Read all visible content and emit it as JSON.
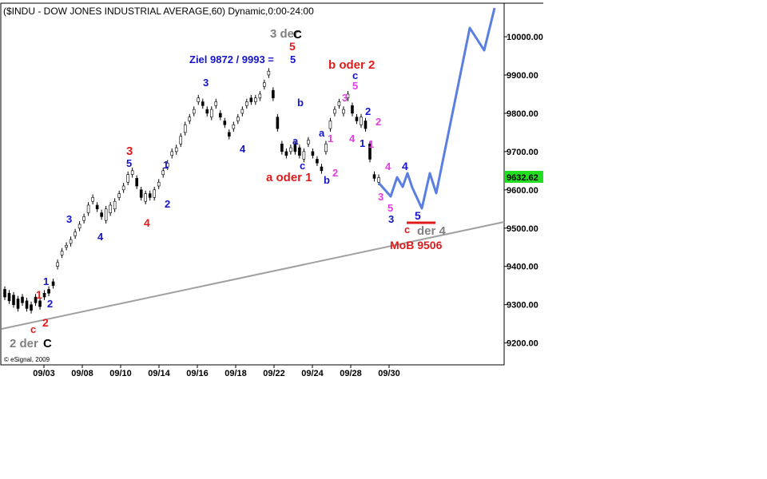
{
  "chart_data": {
    "type": "line",
    "title": "($INDU - DOW JONES INDUSTRIAL AVERAGE,60) Dynamic,0:00-24:00",
    "copyright": "© eSignal, 2009",
    "x_ticks": [
      "09/03",
      "09/08",
      "09/10",
      "09/14",
      "09/16",
      "09/18",
      "09/22",
      "09/24",
      "09/28",
      "09/30"
    ],
    "y_ticks": [
      "10000.00",
      "9900.00",
      "9800.00",
      "9700.00",
      "9600.00",
      "9500.00",
      "9400.00",
      "9300.00",
      "9200.00"
    ],
    "ylim": [
      9155,
      10080
    ],
    "last_price": "9632.62",
    "last_price_value": 9632.62,
    "colors": {
      "price": "#000000",
      "bull": "#000000",
      "bear": "#000000",
      "forecast": "#5b7fe0",
      "trendline": "#a0a0a0",
      "last_price_bg": "#22dd22",
      "red": "#e01b1b",
      "blue": "#1414c8",
      "magenta": "#e040e0",
      "gray": "#808080",
      "black": "#000000"
    },
    "price_path": [
      [
        9340,
        9320
      ],
      [
        9330,
        9310
      ],
      [
        9325,
        9300
      ],
      [
        9315,
        9290
      ],
      [
        9320,
        9305
      ],
      [
        9310,
        9290
      ],
      [
        9300,
        9285
      ],
      [
        9320,
        9305
      ],
      [
        9310,
        9295
      ],
      [
        9330,
        9320
      ],
      [
        9340,
        9330
      ],
      [
        9360,
        9350
      ],
      [
        9400,
        9410
      ],
      [
        9430,
        9440
      ],
      [
        9450,
        9455
      ],
      [
        9460,
        9470
      ],
      [
        9480,
        9490
      ],
      [
        9500,
        9510
      ],
      [
        9520,
        9530
      ],
      [
        9540,
        9560
      ],
      [
        9570,
        9580
      ],
      [
        9560,
        9550
      ],
      [
        9540,
        9530
      ],
      [
        9520,
        9550
      ],
      [
        9540,
        9560
      ],
      [
        9550,
        9570
      ],
      [
        9580,
        9590
      ],
      [
        9600,
        9610
      ],
      [
        9620,
        9640
      ],
      [
        9640,
        9650
      ],
      [
        9630,
        9610
      ],
      [
        9600,
        9580
      ],
      [
        9570,
        9590
      ],
      [
        9590,
        9580
      ],
      [
        9580,
        9600
      ],
      [
        9610,
        9620
      ],
      [
        9640,
        9650
      ],
      [
        9660,
        9670
      ],
      [
        9690,
        9700
      ],
      [
        9700,
        9710
      ],
      [
        9720,
        9740
      ],
      [
        9750,
        9770
      ],
      [
        9780,
        9790
      ],
      [
        9800,
        9810
      ],
      [
        9830,
        9840
      ],
      [
        9830,
        9820
      ],
      [
        9810,
        9800
      ],
      [
        9790,
        9810
      ],
      [
        9820,
        9830
      ],
      [
        9800,
        9790
      ],
      [
        9780,
        9770
      ],
      [
        9750,
        9740
      ],
      [
        9760,
        9770
      ],
      [
        9780,
        9790
      ],
      [
        9800,
        9810
      ],
      [
        9820,
        9830
      ],
      [
        9840,
        9830
      ],
      [
        9830,
        9840
      ],
      [
        9840,
        9850
      ],
      [
        9870,
        9880
      ],
      [
        9900,
        9910
      ],
      [
        9860,
        9840
      ],
      [
        9790,
        9760
      ],
      [
        9720,
        9700
      ],
      [
        9700,
        9690
      ],
      [
        9700,
        9710
      ],
      [
        9720,
        9700
      ],
      [
        9710,
        9690
      ],
      [
        9680,
        9700
      ],
      [
        9720,
        9730
      ],
      [
        9700,
        9690
      ],
      [
        9680,
        9670
      ],
      [
        9660,
        9650
      ],
      [
        9700,
        9720
      ],
      [
        9760,
        9780
      ],
      [
        9800,
        9810
      ],
      [
        9820,
        9830
      ],
      [
        9800,
        9810
      ],
      [
        9840,
        9850
      ],
      [
        9820,
        9800
      ],
      [
        9790,
        9780
      ],
      [
        9770,
        9790
      ],
      [
        9780,
        9760
      ],
      [
        9720,
        9680
      ],
      [
        9640,
        9630
      ],
      [
        9620,
        9632
      ]
    ],
    "forecast_path": [
      [
        9632,
        9590
      ],
      [
        9650,
        9590
      ],
      [
        9640,
        9600
      ],
      [
        9640,
        9560
      ],
      [
        9640,
        9590
      ],
      [
        9670,
        9510
      ],
      [
        9900,
        9950
      ],
      [
        10010,
        10090
      ],
      [
        10070,
        10030
      ]
    ],
    "trendline": {
      "x0": 0,
      "y0": 9237,
      "x1": 1,
      "y1": 9517
    },
    "annotations": [
      {
        "text": "3 der ",
        "color": "gray",
        "size": 15
      },
      {
        "text": "C",
        "color": "black",
        "size": 15
      },
      {
        "text": "5",
        "color": "red",
        "size": 14
      },
      {
        "text": "Ziel 9872 / 9993 = ",
        "color": "blue",
        "size": 13
      },
      {
        "text": "5",
        "color": "blue",
        "size": 13
      },
      {
        "text": "b oder 2",
        "color": "red",
        "size": 15
      },
      {
        "text": "c",
        "color": "blue",
        "size": 13
      },
      {
        "text": "5",
        "color": "magenta",
        "size": 13
      },
      {
        "text": "3",
        "color": "blue",
        "size": 13
      },
      {
        "text": "b",
        "color": "blue",
        "size": 13
      },
      {
        "text": "3",
        "color": "magenta",
        "size": 13
      },
      {
        "text": "2",
        "color": "blue",
        "size": 13
      },
      {
        "text": "2",
        "color": "magenta",
        "size": 13
      },
      {
        "text": "a",
        "color": "blue",
        "size": 13
      },
      {
        "text": "1",
        "color": "magenta",
        "size": 13
      },
      {
        "text": "4",
        "color": "magenta",
        "size": 13
      },
      {
        "text": "1",
        "color": "blue",
        "size": 13
      },
      {
        "text": "1",
        "color": "magenta",
        "size": 13
      },
      {
        "text": "a",
        "color": "blue",
        "size": 13
      },
      {
        "text": "4",
        "color": "blue",
        "size": 13
      },
      {
        "text": "c",
        "color": "blue",
        "size": 13
      },
      {
        "text": "a oder 1",
        "color": "red",
        "size": 15
      },
      {
        "text": "b",
        "color": "blue",
        "size": 13
      },
      {
        "text": "2",
        "color": "magenta",
        "size": 13
      },
      {
        "text": "4",
        "color": "magenta",
        "size": 13
      },
      {
        "text": "4",
        "color": "blue",
        "size": 14
      },
      {
        "text": "3",
        "color": "magenta",
        "size": 13
      },
      {
        "text": "5",
        "color": "magenta",
        "size": 13
      },
      {
        "text": "3",
        "color": "blue",
        "size": 13
      },
      {
        "text": "5",
        "color": "blue",
        "size": 14
      },
      {
        "text": "c",
        "color": "red",
        "size": 13
      },
      {
        "text": "der 4",
        "color": "gray",
        "size": 15
      },
      {
        "text": "MoB 9506",
        "color": "red",
        "size": 14
      },
      {
        "text": "3",
        "color": "red",
        "size": 15
      },
      {
        "text": "5",
        "color": "blue",
        "size": 13
      },
      {
        "text": "1",
        "color": "blue",
        "size": 13
      },
      {
        "text": "2",
        "color": "blue",
        "size": 13
      },
      {
        "text": "4",
        "color": "red",
        "size": 14
      },
      {
        "text": "3",
        "color": "blue",
        "size": 13
      },
      {
        "text": "4",
        "color": "blue",
        "size": 13
      },
      {
        "text": "1",
        "color": "blue",
        "size": 13
      },
      {
        "text": "1",
        "color": "red",
        "size": 14
      },
      {
        "text": "2",
        "color": "blue",
        "size": 13
      },
      {
        "text": "c",
        "color": "red",
        "size": 13
      },
      {
        "text": "2",
        "color": "red",
        "size": 14
      },
      {
        "text": "2 der ",
        "color": "gray",
        "size": 15
      },
      {
        "text": "C",
        "color": "black",
        "size": 15
      }
    ]
  }
}
